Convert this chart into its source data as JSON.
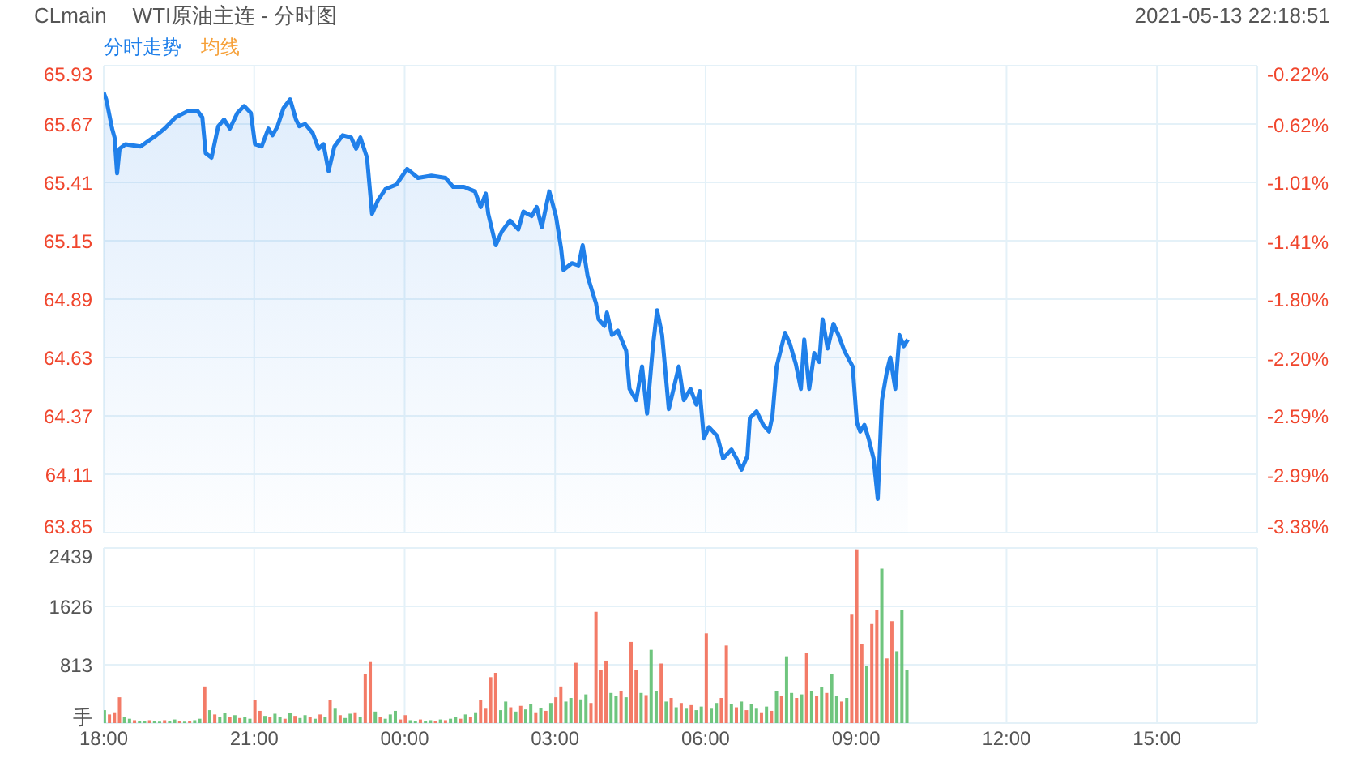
{
  "chart_data": [
    {
      "type": "area",
      "title": "CLmain",
      "subtitle": "WTI原油主连 - 分时图",
      "annotations": [
        "2021-05-13 22:18:51"
      ],
      "x": [
        "2021-05-12T18:00",
        "2021-05-12T18:03",
        "2021-05-12T18:10",
        "2021-05-12T18:13",
        "2021-05-12T18:16",
        "2021-05-12T18:19",
        "2021-05-12T18:26",
        "2021-05-12T18:44",
        "2021-05-12T19:03",
        "2021-05-12T19:13",
        "2021-05-12T19:26",
        "2021-05-12T19:42",
        "2021-05-12T19:52",
        "2021-05-12T19:58",
        "2021-05-12T20:02",
        "2021-05-12T20:09",
        "2021-05-12T20:17",
        "2021-05-12T20:24",
        "2021-05-12T20:31",
        "2021-05-12T20:40",
        "2021-05-12T20:48",
        "2021-05-12T20:56",
        "2021-05-12T21:01",
        "2021-05-12T21:09",
        "2021-05-12T21:17",
        "2021-05-12T21:22",
        "2021-05-12T21:28",
        "2021-05-12T21:35",
        "2021-05-12T21:43",
        "2021-05-12T21:50",
        "2021-05-12T21:54",
        "2021-05-12T22:01",
        "2021-05-12T22:10",
        "2021-05-12T22:17",
        "2021-05-12T22:23",
        "2021-05-12T22:29",
        "2021-05-12T22:36",
        "2021-05-12T22:46",
        "2021-05-12T22:56",
        "2021-05-12T23:02",
        "2021-05-12T23:07",
        "2021-05-12T23:15",
        "2021-05-12T23:21",
        "2021-05-12T23:28",
        "2021-05-12T23:37",
        "2021-05-12T23:50",
        "2021-05-13T00:03",
        "2021-05-13T00:16",
        "2021-05-13T00:32",
        "2021-05-13T00:49",
        "2021-05-13T00:58",
        "2021-05-13T01:11",
        "2021-05-13T01:24",
        "2021-05-13T01:31",
        "2021-05-13T01:37",
        "2021-05-13T01:40",
        "2021-05-13T01:49",
        "2021-05-13T01:56",
        "2021-05-13T02:06",
        "2021-05-13T02:16",
        "2021-05-13T02:22",
        "2021-05-13T02:32",
        "2021-05-13T02:38",
        "2021-05-13T02:44",
        "2021-05-13T02:53",
        "2021-05-13T03:01",
        "2021-05-13T03:07",
        "2021-05-13T03:10",
        "2021-05-13T03:20",
        "2021-05-13T03:28",
        "2021-05-13T03:33",
        "2021-05-13T03:39",
        "2021-05-13T03:49",
        "2021-05-13T03:52",
        "2021-05-13T03:59",
        "2021-05-13T04:02",
        "2021-05-13T04:08",
        "2021-05-13T04:15",
        "2021-05-13T04:25",
        "2021-05-13T04:29",
        "2021-05-13T04:37",
        "2021-05-13T04:44",
        "2021-05-13T04:50",
        "2021-05-13T04:57",
        "2021-05-13T05:02",
        "2021-05-13T05:08",
        "2021-05-13T05:16",
        "2021-05-13T05:28",
        "2021-05-13T05:34",
        "2021-05-13T05:42",
        "2021-05-13T05:49",
        "2021-05-13T05:53",
        "2021-05-13T05:58",
        "2021-05-13T06:04",
        "2021-05-13T06:14",
        "2021-05-13T06:21",
        "2021-05-13T06:31",
        "2021-05-13T06:37",
        "2021-05-13T06:43",
        "2021-05-13T06:50",
        "2021-05-13T06:53",
        "2021-05-13T07:01",
        "2021-05-13T07:09",
        "2021-05-13T07:16",
        "2021-05-13T07:20",
        "2021-05-13T07:25",
        "2021-05-13T07:35",
        "2021-05-13T07:41",
        "2021-05-13T07:48",
        "2021-05-13T07:54",
        "2021-05-13T07:58",
        "2021-05-13T08:04",
        "2021-05-13T08:10",
        "2021-05-13T08:16",
        "2021-05-13T08:20",
        "2021-05-13T08:26",
        "2021-05-13T08:33",
        "2021-05-13T08:39",
        "2021-05-13T08:46",
        "2021-05-13T08:56",
        "2021-05-13T09:01",
        "2021-05-13T09:05",
        "2021-05-13T09:10",
        "2021-05-13T09:15",
        "2021-05-13T09:21",
        "2021-05-13T09:26",
        "2021-05-13T09:31",
        "2021-05-13T09:37",
        "2021-05-13T09:41",
        "2021-05-13T09:47",
        "2021-05-13T09:52",
        "2021-05-13T09:57",
        "2021-05-13T10:02"
      ],
      "series": [
        {
          "name": "分时走势",
          "color": "#2080ea",
          "values": [
            65.81,
            65.78,
            65.65,
            65.61,
            65.45,
            65.56,
            65.58,
            65.57,
            65.62,
            65.65,
            65.7,
            65.73,
            65.73,
            65.7,
            65.54,
            65.52,
            65.66,
            65.69,
            65.65,
            65.72,
            65.75,
            65.72,
            65.58,
            65.57,
            65.65,
            65.62,
            65.66,
            65.74,
            65.78,
            65.69,
            65.66,
            65.67,
            65.63,
            65.56,
            65.58,
            65.46,
            65.57,
            65.62,
            65.61,
            65.56,
            65.61,
            65.52,
            65.27,
            65.33,
            65.38,
            65.4,
            65.47,
            65.43,
            65.44,
            65.43,
            65.39,
            65.39,
            65.37,
            65.3,
            65.36,
            65.27,
            65.13,
            65.19,
            65.24,
            65.2,
            65.28,
            65.26,
            65.3,
            65.21,
            65.37,
            65.26,
            65.12,
            65.02,
            65.05,
            65.04,
            65.13,
            64.99,
            64.87,
            64.8,
            64.77,
            64.83,
            64.73,
            64.75,
            64.66,
            64.49,
            64.44,
            64.59,
            64.38,
            64.68,
            64.84,
            64.73,
            64.4,
            64.59,
            64.44,
            64.49,
            64.42,
            64.48,
            64.27,
            64.32,
            64.28,
            64.18,
            64.22,
            64.18,
            64.13,
            64.19,
            64.36,
            64.39,
            64.33,
            64.3,
            64.37,
            64.59,
            64.74,
            64.69,
            64.6,
            64.49,
            64.71,
            64.49,
            64.65,
            64.61,
            64.8,
            64.67,
            64.78,
            64.73,
            64.66,
            64.59,
            64.34,
            64.3,
            64.33,
            64.27,
            64.18,
            64.0,
            64.44,
            64.57,
            64.63,
            64.49,
            64.73,
            64.68,
            64.71
          ]
        },
        {
          "name": "均线",
          "color": "#f6a13a",
          "values": [
            null,
            null,
            null,
            null,
            null,
            null,
            null,
            null,
            null,
            null,
            null,
            null,
            null,
            null,
            null,
            null,
            null,
            null,
            null,
            null,
            null,
            null,
            null,
            null,
            null,
            null,
            null,
            null,
            null,
            null,
            null,
            null,
            null,
            null,
            null,
            null,
            null,
            null,
            null,
            null,
            null,
            null,
            null,
            null,
            null,
            null,
            null,
            null,
            null,
            null,
            null,
            null,
            null,
            null,
            null,
            null,
            null,
            null,
            null,
            null,
            null,
            null,
            null,
            null,
            null,
            null,
            null,
            null,
            null,
            null,
            null,
            null,
            null,
            null,
            null,
            null,
            null,
            null,
            null,
            null,
            null,
            null,
            null,
            null,
            null,
            null,
            null,
            null,
            null,
            null,
            null,
            null,
            null,
            null,
            null,
            null,
            null,
            null,
            null,
            null,
            null,
            null,
            null,
            null,
            null,
            null,
            null,
            null,
            null,
            null,
            null,
            null,
            null,
            null,
            null,
            null,
            null,
            null,
            null,
            null,
            null,
            null,
            null,
            null,
            null,
            null,
            null,
            null,
            null,
            null,
            null,
            null,
            null
          ]
        }
      ],
      "xlim": [
        "2021-05-12T18:00",
        "2021-05-13T17:00"
      ],
      "xticks": [
        "2021-05-12T18:00",
        "2021-05-12T21:00",
        "2021-05-13T00:00",
        "2021-05-13T03:00",
        "2021-05-13T06:00",
        "2021-05-13T09:00",
        "2021-05-13T12:00",
        "2021-05-13T15:00"
      ],
      "ylim": [
        63.85,
        65.93
      ],
      "yticks": [
        63.85,
        64.11,
        64.37,
        64.63,
        64.89,
        65.15,
        65.41,
        65.67,
        65.93
      ],
      "y2lim": [
        -3.38,
        -0.22
      ],
      "y2ticks": [
        {
          "value": -3.38,
          "label": "-3.38%"
        },
        {
          "value": -2.99,
          "label": "-2.99%"
        },
        {
          "value": -2.59,
          "label": "-2.59%"
        },
        {
          "value": -2.2,
          "label": "-2.20%"
        },
        {
          "value": -1.8,
          "label": "-1.80%"
        },
        {
          "value": -1.41,
          "label": "-1.41%"
        },
        {
          "value": -1.01,
          "label": "-1.01%"
        },
        {
          "value": -0.62,
          "label": "-0.62%"
        },
        {
          "value": -0.22,
          "label": "-0.22%"
        }
      ],
      "grid": true,
      "legend": "top left",
      "tick_labels": "y"
    },
    {
      "type": "bar",
      "x": [
        "2021-05-12T18:00",
        "2021-05-12T18:06",
        "2021-05-12T18:12",
        "2021-05-12T18:18",
        "2021-05-12T18:24",
        "2021-05-12T18:30",
        "2021-05-12T18:36",
        "2021-05-12T18:42",
        "2021-05-12T18:48",
        "2021-05-12T18:54",
        "2021-05-12T19:00",
        "2021-05-12T19:06",
        "2021-05-12T19:12",
        "2021-05-12T19:18",
        "2021-05-12T19:24",
        "2021-05-12T19:30",
        "2021-05-12T19:36",
        "2021-05-12T19:42",
        "2021-05-12T19:48",
        "2021-05-12T19:54",
        "2021-05-12T20:00",
        "2021-05-12T20:06",
        "2021-05-12T20:12",
        "2021-05-12T20:18",
        "2021-05-12T20:24",
        "2021-05-12T20:30",
        "2021-05-12T20:36",
        "2021-05-12T20:42",
        "2021-05-12T20:48",
        "2021-05-12T20:54",
        "2021-05-12T21:00",
        "2021-05-12T21:06",
        "2021-05-12T21:12",
        "2021-05-12T21:18",
        "2021-05-12T21:24",
        "2021-05-12T21:30",
        "2021-05-12T21:36",
        "2021-05-12T21:42",
        "2021-05-12T21:48",
        "2021-05-12T21:54",
        "2021-05-12T22:00",
        "2021-05-12T22:06",
        "2021-05-12T22:12",
        "2021-05-12T22:18",
        "2021-05-12T22:24",
        "2021-05-12T22:30",
        "2021-05-12T22:36",
        "2021-05-12T22:42",
        "2021-05-12T22:48",
        "2021-05-12T22:54",
        "2021-05-12T23:00",
        "2021-05-12T23:06",
        "2021-05-12T23:12",
        "2021-05-12T23:18",
        "2021-05-12T23:24",
        "2021-05-12T23:30",
        "2021-05-12T23:36",
        "2021-05-12T23:42",
        "2021-05-12T23:48",
        "2021-05-12T23:54",
        "2021-05-13T00:00",
        "2021-05-13T00:06",
        "2021-05-13T00:12",
        "2021-05-13T00:18",
        "2021-05-13T00:24",
        "2021-05-13T00:30",
        "2021-05-13T00:36",
        "2021-05-13T00:42",
        "2021-05-13T00:48",
        "2021-05-13T00:54",
        "2021-05-13T01:00",
        "2021-05-13T01:06",
        "2021-05-13T01:12",
        "2021-05-13T01:18",
        "2021-05-13T01:24",
        "2021-05-13T01:30",
        "2021-05-13T01:36",
        "2021-05-13T01:42",
        "2021-05-13T01:48",
        "2021-05-13T01:54",
        "2021-05-13T02:00",
        "2021-05-13T02:06",
        "2021-05-13T02:12",
        "2021-05-13T02:18",
        "2021-05-13T02:24",
        "2021-05-13T02:30",
        "2021-05-13T02:36",
        "2021-05-13T02:42",
        "2021-05-13T02:48",
        "2021-05-13T02:54",
        "2021-05-13T03:00",
        "2021-05-13T03:06",
        "2021-05-13T03:12",
        "2021-05-13T03:18",
        "2021-05-13T03:24",
        "2021-05-13T03:30",
        "2021-05-13T03:36",
        "2021-05-13T03:42",
        "2021-05-13T03:48",
        "2021-05-13T03:54",
        "2021-05-13T04:00",
        "2021-05-13T04:06",
        "2021-05-13T04:12",
        "2021-05-13T04:18",
        "2021-05-13T04:24",
        "2021-05-13T04:30",
        "2021-05-13T04:36",
        "2021-05-13T04:42",
        "2021-05-13T04:48",
        "2021-05-13T04:54",
        "2021-05-13T05:00",
        "2021-05-13T05:06",
        "2021-05-13T05:12",
        "2021-05-13T05:18",
        "2021-05-13T05:24",
        "2021-05-13T05:30",
        "2021-05-13T05:36",
        "2021-05-13T05:42",
        "2021-05-13T05:48",
        "2021-05-13T05:54",
        "2021-05-13T06:00",
        "2021-05-13T06:06",
        "2021-05-13T06:12",
        "2021-05-13T06:18",
        "2021-05-13T06:24",
        "2021-05-13T06:30",
        "2021-05-13T06:36",
        "2021-05-13T06:42",
        "2021-05-13T06:48",
        "2021-05-13T06:54",
        "2021-05-13T07:00",
        "2021-05-13T07:06",
        "2021-05-13T07:12",
        "2021-05-13T07:18",
        "2021-05-13T07:24",
        "2021-05-13T07:30",
        "2021-05-13T07:36",
        "2021-05-13T07:42",
        "2021-05-13T07:48",
        "2021-05-13T07:54",
        "2021-05-13T08:00",
        "2021-05-13T08:06",
        "2021-05-13T08:12",
        "2021-05-13T08:18",
        "2021-05-13T08:24",
        "2021-05-13T08:30",
        "2021-05-13T08:36",
        "2021-05-13T08:42",
        "2021-05-13T08:48",
        "2021-05-13T08:54",
        "2021-05-13T09:00",
        "2021-05-13T09:06",
        "2021-05-13T09:12",
        "2021-05-13T09:18",
        "2021-05-13T09:24",
        "2021-05-13T09:30",
        "2021-05-13T09:36",
        "2021-05-13T09:42",
        "2021-05-13T09:48",
        "2021-05-13T09:54",
        "2021-05-13T10:00"
      ],
      "values": [
        180,
        120,
        150,
        360,
        90,
        60,
        40,
        30,
        30,
        40,
        30,
        20,
        40,
        30,
        50,
        30,
        20,
        30,
        40,
        60,
        510,
        180,
        120,
        90,
        140,
        80,
        110,
        70,
        90,
        60,
        320,
        170,
        100,
        80,
        130,
        90,
        60,
        140,
        100,
        70,
        110,
        80,
        60,
        120,
        90,
        320,
        200,
        110,
        70,
        130,
        150,
        90,
        680,
        850,
        160,
        80,
        60,
        120,
        170,
        50,
        110,
        40,
        30,
        50,
        30,
        40,
        30,
        50,
        40,
        60,
        80,
        60,
        120,
        90,
        150,
        320,
        200,
        640,
        700,
        180,
        300,
        220,
        160,
        240,
        190,
        260,
        150,
        210,
        170,
        280,
        360,
        510,
        300,
        350,
        840,
        330,
        400,
        280,
        1550,
        740,
        870,
        420,
        380,
        450,
        360,
        1130,
        740,
        420,
        390,
        1020,
        450,
        830,
        300,
        350,
        220,
        280,
        200,
        250,
        180,
        230,
        1250,
        200,
        280,
        350,
        1080,
        260,
        220,
        300,
        180,
        260,
        200,
        150,
        230,
        170,
        450,
        380,
        930,
        420,
        350,
        400,
        980,
        450,
        380,
        500,
        420,
        680,
        380,
        300,
        350,
        1510,
        2420,
        1100,
        800,
        1380,
        1570,
        2150,
        900,
        1420,
        1000,
        1580,
        740
      ],
      "colors": [
        "#5fbf70",
        "#f26d57",
        "#f26d57",
        "#f26d57",
        "#5fbf70",
        "#5fbf70",
        "#f26d57",
        "#5fbf70",
        "#5fbf70",
        "#f26d57",
        "#5fbf70",
        "#5fbf70",
        "#f26d57",
        "#5fbf70",
        "#5fbf70",
        "#f26d57",
        "#5fbf70",
        "#f26d57",
        "#5fbf70",
        "#5fbf70",
        "#f26d57",
        "#5fbf70",
        "#f26d57",
        "#5fbf70",
        "#5fbf70",
        "#f26d57",
        "#5fbf70",
        "#f26d57",
        "#5fbf70",
        "#5fbf70",
        "#f26d57",
        "#f26d57",
        "#5fbf70",
        "#f26d57",
        "#5fbf70",
        "#5fbf70",
        "#f26d57",
        "#5fbf70",
        "#f26d57",
        "#5fbf70",
        "#5fbf70",
        "#f26d57",
        "#5fbf70",
        "#f26d57",
        "#5fbf70",
        "#f26d57",
        "#5fbf70",
        "#f26d57",
        "#5fbf70",
        "#5fbf70",
        "#f26d57",
        "#5fbf70",
        "#f26d57",
        "#f26d57",
        "#5fbf70",
        "#f26d57",
        "#5fbf70",
        "#5fbf70",
        "#5fbf70",
        "#f26d57",
        "#f26d57",
        "#5fbf70",
        "#5fbf70",
        "#f26d57",
        "#5fbf70",
        "#5fbf70",
        "#f26d57",
        "#5fbf70",
        "#f26d57",
        "#5fbf70",
        "#5fbf70",
        "#f26d57",
        "#5fbf70",
        "#f26d57",
        "#5fbf70",
        "#f26d57",
        "#f26d57",
        "#f26d57",
        "#f26d57",
        "#5fbf70",
        "#5fbf70",
        "#f26d57",
        "#5fbf70",
        "#f26d57",
        "#5fbf70",
        "#5fbf70",
        "#f26d57",
        "#5fbf70",
        "#f26d57",
        "#5fbf70",
        "#f26d57",
        "#f26d57",
        "#5fbf70",
        "#5fbf70",
        "#f26d57",
        "#5fbf70",
        "#5fbf70",
        "#f26d57",
        "#f26d57",
        "#f26d57",
        "#f26d57",
        "#5fbf70",
        "#5fbf70",
        "#f26d57",
        "#5fbf70",
        "#f26d57",
        "#f26d57",
        "#5fbf70",
        "#f26d57",
        "#5fbf70",
        "#5fbf70",
        "#f26d57",
        "#5fbf70",
        "#f26d57",
        "#5fbf70",
        "#f26d57",
        "#5fbf70",
        "#f26d57",
        "#5fbf70",
        "#5fbf70",
        "#f26d57",
        "#5fbf70",
        "#5fbf70",
        "#f26d57",
        "#f26d57",
        "#5fbf70",
        "#f26d57",
        "#5fbf70",
        "#f26d57",
        "#5fbf70",
        "#5fbf70",
        "#f26d57",
        "#5fbf70",
        "#f26d57",
        "#5fbf70",
        "#f26d57",
        "#5fbf70",
        "#5fbf70",
        "#f26d57",
        "#5fbf70",
        "#f26d57",
        "#5fbf70",
        "#f26d57",
        "#5fbf70",
        "#f26d57",
        "#5fbf70",
        "#5fbf70",
        "#f26d57",
        "#5fbf70",
        "#f26d57",
        "#f26d57",
        "#f26d57",
        "#5fbf70",
        "#f26d57",
        "#f26d57",
        "#5fbf70",
        "#f26d57",
        "#f26d57",
        "#5fbf70",
        "#5fbf70",
        "#5fbf70"
      ],
      "xlim": [
        "2021-05-12T18:00",
        "2021-05-13T17:00"
      ],
      "xticks": [
        {
          "value": "2021-05-12T18:00",
          "label": "18:00"
        },
        {
          "value": "2021-05-12T21:00",
          "label": "21:00"
        },
        {
          "value": "2021-05-13T00:00",
          "label": "00:00"
        },
        {
          "value": "2021-05-13T03:00",
          "label": "03:00"
        },
        {
          "value": "2021-05-13T06:00",
          "label": "06:00"
        },
        {
          "value": "2021-05-13T09:00",
          "label": "09:00"
        },
        {
          "value": "2021-05-13T12:00",
          "label": "12:00"
        },
        {
          "value": "2021-05-13T15:00",
          "label": "15:00"
        }
      ],
      "ylim": [
        0,
        2439
      ],
      "yticks": [
        {
          "value": 0,
          "label": "手"
        },
        813,
        1626,
        2439
      ],
      "grid": true
    }
  ]
}
